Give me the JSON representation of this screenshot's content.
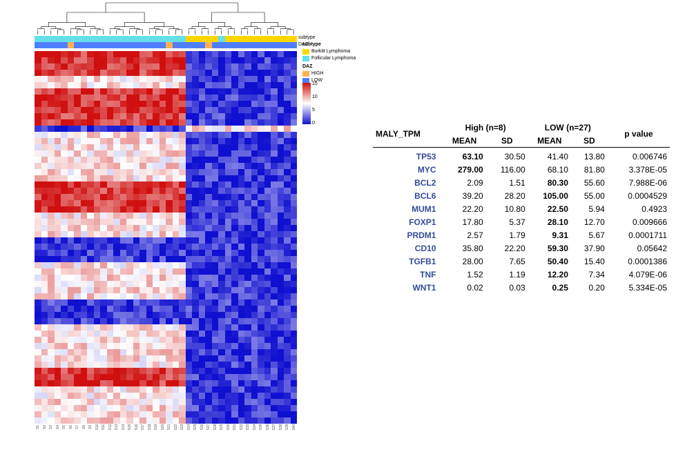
{
  "heatmap": {
    "type": "heatmap",
    "n_cols": 40,
    "n_rows": 60,
    "left_cluster_cols": 23,
    "right_cluster_cols": 17,
    "z_min": -2,
    "z_max": 15,
    "background_color": "#ffffff",
    "dendrogram_color": "#000000",
    "color_scale": {
      "low": "#1010d0",
      "mid": "#ffffff",
      "high": "#d01010"
    },
    "colorbar_ticks": [
      "15",
      "10",
      "5",
      "0"
    ],
    "annotation_tracks": [
      {
        "name": "subtype",
        "label": "subtype",
        "left_color": "#66e0e8",
        "right_color": "#ffd700",
        "exceptions": [
          [
            28,
            "#66e0e8"
          ]
        ]
      },
      {
        "name": "DAZ",
        "label": "DAZ",
        "left_color": "#4f7fff",
        "right_color": "#4f7fff",
        "exceptions": [
          [
            5,
            "#ffb050"
          ],
          [
            20,
            "#ffb050"
          ],
          [
            26,
            "#ffb050"
          ]
        ]
      }
    ],
    "annotation_legend_labels": {
      "subtype": "subtype",
      "daz": "DAZ"
    },
    "x_tick_labels": [
      "S1",
      "S2",
      "S3",
      "S4",
      "S5",
      "S6",
      "S7",
      "S8",
      "S9",
      "S10",
      "S11",
      "S12",
      "S13",
      "S14",
      "S15",
      "S16",
      "S17",
      "S18",
      "S19",
      "S20",
      "S21",
      "S22",
      "S23",
      "S24",
      "S25",
      "S26",
      "S27",
      "S28",
      "S29",
      "S30",
      "S31",
      "S32",
      "S33",
      "S34",
      "S35",
      "S36",
      "S37",
      "S38",
      "S39",
      "S40"
    ],
    "row_band_plan": [
      {
        "rows": 4,
        "left": "high",
        "right": "low"
      },
      {
        "rows": 2,
        "left": "mid",
        "right": "low"
      },
      {
        "rows": 6,
        "left": "high",
        "right": "low"
      },
      {
        "rows": 1,
        "left": "low",
        "right": "mid"
      },
      {
        "rows": 8,
        "left": "mid",
        "right": "low"
      },
      {
        "rows": 5,
        "left": "high",
        "right": "low"
      },
      {
        "rows": 4,
        "left": "mid",
        "right": "low"
      },
      {
        "rows": 4,
        "left": "low",
        "right": "low"
      },
      {
        "rows": 6,
        "left": "mid",
        "right": "low"
      },
      {
        "rows": 4,
        "left": "low",
        "right": "low"
      },
      {
        "rows": 7,
        "left": "mid",
        "right": "low"
      },
      {
        "rows": 3,
        "left": "high",
        "right": "low"
      },
      {
        "rows": 6,
        "left": "mid",
        "right": "low"
      }
    ]
  },
  "legends": {
    "subtype": {
      "title": "subtype",
      "items": [
        {
          "label": "Burkitt Lymphoma",
          "color": "#ffd700"
        },
        {
          "label": "Follicular Lymphoma",
          "color": "#66e0e8"
        }
      ]
    },
    "daz": {
      "title": "DAZ",
      "items": [
        {
          "label": "HIGH",
          "color": "#ffb050"
        },
        {
          "label": "LOW",
          "color": "#4f7fff"
        }
      ]
    }
  },
  "table": {
    "title": "MALY_TPM",
    "groups": [
      {
        "name": "High",
        "n": 8
      },
      {
        "name": "LOW",
        "n": 27
      }
    ],
    "columns": [
      "MEAN",
      "SD",
      "MEAN",
      "SD",
      "p value"
    ],
    "rows": [
      {
        "gene": "TP53",
        "high_mean": "63.10",
        "high_sd": "30.50",
        "low_mean": "41.40",
        "low_sd": "13.80",
        "p": "0.006746",
        "bold_side": "high"
      },
      {
        "gene": "MYC",
        "high_mean": "279.00",
        "high_sd": "116.00",
        "low_mean": "68.10",
        "low_sd": "81.80",
        "p": "3.378E-05",
        "bold_side": "high"
      },
      {
        "gene": "BCL2",
        "high_mean": "2.09",
        "high_sd": "1.51",
        "low_mean": "80.30",
        "low_sd": "55.60",
        "p": "7.988E-06",
        "bold_side": "low"
      },
      {
        "gene": "BCL6",
        "high_mean": "39.20",
        "high_sd": "28.20",
        "low_mean": "105.00",
        "low_sd": "55.00",
        "p": "0.0004529",
        "bold_side": "low"
      },
      {
        "gene": "MUM1",
        "high_mean": "22.20",
        "high_sd": "10.80",
        "low_mean": "22.50",
        "low_sd": "5.94",
        "p": "0.4923",
        "bold_side": "low"
      },
      {
        "gene": "FOXP1",
        "high_mean": "17.80",
        "high_sd": "5.37",
        "low_mean": "28.10",
        "low_sd": "12.70",
        "p": "0.009666",
        "bold_side": "low"
      },
      {
        "gene": "PRDM1",
        "high_mean": "2.57",
        "high_sd": "1.79",
        "low_mean": "9.31",
        "low_sd": "5.67",
        "p": "0.0001711",
        "bold_side": "low"
      },
      {
        "gene": "CD10",
        "high_mean": "35.80",
        "high_sd": "22.20",
        "low_mean": "59.30",
        "low_sd": "37.90",
        "p": "0.05642",
        "bold_side": "low"
      },
      {
        "gene": "TGFB1",
        "high_mean": "28.00",
        "high_sd": "7.65",
        "low_mean": "50.40",
        "low_sd": "15.40",
        "p": "0.0001386",
        "bold_side": "low"
      },
      {
        "gene": "TNF",
        "high_mean": "1.52",
        "high_sd": "1.19",
        "low_mean": "12.20",
        "low_sd": "7.34",
        "p": "4.079E-06",
        "bold_side": "low"
      },
      {
        "gene": "WNT1",
        "high_mean": "0.02",
        "high_sd": "0.03",
        "low_mean": "0.25",
        "low_sd": "0.20",
        "p": "5.334E-05",
        "bold_side": "low"
      }
    ],
    "header_text": {
      "title": "MALY_TPM",
      "high": "High (n=8)",
      "low": "LOW (n=27)",
      "pvalue": "p value",
      "mean": "MEAN",
      "sd": "SD"
    },
    "style": {
      "gene_color": "#334a9a",
      "text_color": "#000000",
      "fontsize": 12,
      "border_color": "#000000"
    }
  }
}
